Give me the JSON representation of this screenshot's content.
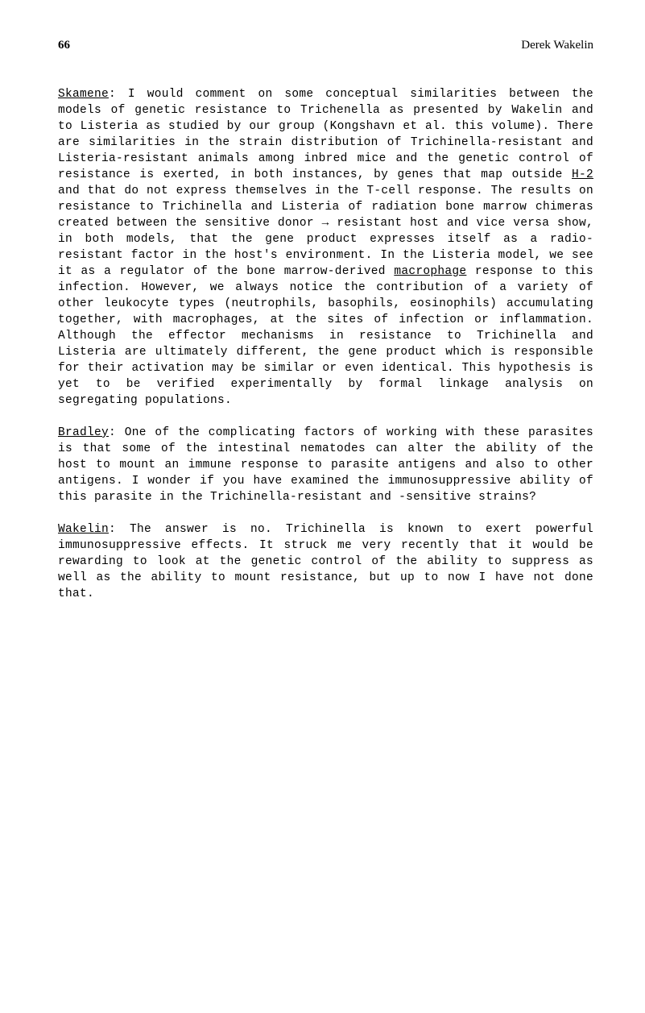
{
  "header": {
    "page_number": "66",
    "author": "Derek Wakelin"
  },
  "paragraphs": {
    "p1_speaker": "Skamene",
    "p1_text_before_h2": ":   I  would  comment  on  some  conceptual  similarities between  the  models  of  genetic  resistance  to  Trichenella  as presented  by  Wakelin  and  to  Listeria  as  studied  by  our  group (Kongshavn  et  al.  this  volume).   There  are  similarities  in the   strain   distribution   of   Trichinella-resistant   and Listeria-resistant  animals  among  inbred  mice  and  the  genetic control  of  resistance  is  exerted,  in  both  instances,  by genes  that  map  outside  ",
    "p1_h2": "H-2",
    "p1_text_after_h2_before_macrophage": "  and  that  do  not  express  themselves  in  the  T-cell  response.   The  results  on  resistance  to Trichinella  and  Listeria  of  radiation  bone  marrow  chimeras created  between  the  sensitive  donor  →  resistant  host  and vice  versa  show,  in  both  models,  that  the  gene  product  expresses  itself  as  a  radio-resistant  factor  in  the  host's environment.   In  the  Listeria  model,  we  see  it  as  a  regulator  of  the  bone  marrow-derived  ",
    "p1_macrophage": "macrophage",
    "p1_text_after_macrophage": "  response  to  this infection.   However,  we  always  notice  the  contribution  of  a variety  of  other  leukocyte  types  (neutrophils,  basophils, eosinophils)  accumulating  together,  with  macrophages,  at  the sites  of  infection  or  inflammation.   Although  the  effector mechanisms  in  resistance  to  Trichinella  and  Listeria  are ultimately  different,  the  gene  product  which  is  responsible for  their  activation  may  be  similar  or  even  identical.   This hypothesis  is  yet  to  be  verified  experimentally  by  formal linkage  analysis  on  segregating  populations.",
    "p2_speaker": "Bradley",
    "p2_text": ":   One  of  the  complicating  factors  of  working  with these  parasites  is  that  some  of  the  intestinal  nematodes  can alter  the  ability  of  the  host  to  mount  an  immune  response  to parasite  antigens  and  also  to  other  antigens.   I  wonder  if you  have  examined  the  immunosuppressive  ability  of  this  parasite  in  the  Trichinella-resistant  and  -sensitive  strains?",
    "p3_speaker": "Wakelin",
    "p3_text": ":   The  answer  is  no.   Trichinella  is  known  to  exert powerful  immunosuppressive  effects.   It  struck  me  very  recently  that  it  would  be  rewarding  to  look  at  the  genetic control  of  the  ability  to  suppress  as  well  as  the  ability  to mount  resistance,  but  up  to  now  I  have  not  done  that."
  }
}
